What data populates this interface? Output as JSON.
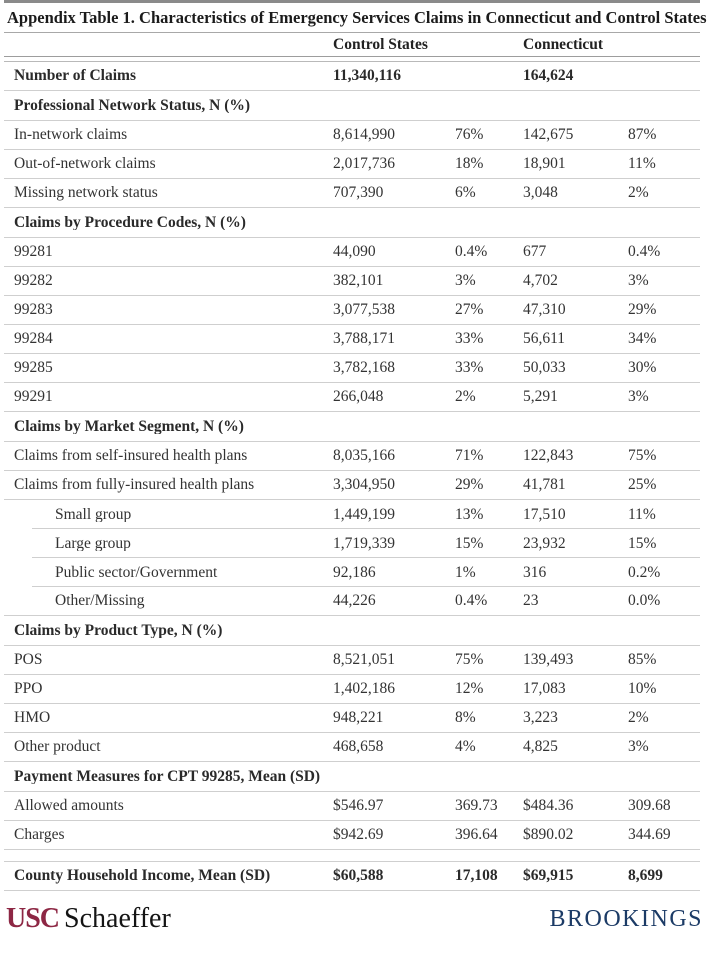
{
  "table": {
    "title": "Appendix Table 1. Characteristics of Emergency Services Claims in Connecticut and Control States",
    "col_headers": [
      "Control States",
      "Connecticut"
    ],
    "rows": [
      {
        "type": "data",
        "bold": true,
        "label": "Number of Claims",
        "c1": "11,340,116",
        "c2": "",
        "c3": "164,624",
        "c4": ""
      },
      {
        "type": "section",
        "label": "Professional Network Status, N (%)"
      },
      {
        "type": "data",
        "label": "In-network claims",
        "c1": "8,614,990",
        "c2": "76%",
        "c3": "142,675",
        "c4": "87%"
      },
      {
        "type": "data",
        "label": "Out-of-network claims",
        "c1": "2,017,736",
        "c2": "18%",
        "c3": "18,901",
        "c4": "11%"
      },
      {
        "type": "data",
        "label": "Missing network status",
        "c1": "707,390",
        "c2": "6%",
        "c3": "3,048",
        "c4": "2%"
      },
      {
        "type": "section",
        "label": "Claims by Procedure Codes, N (%)"
      },
      {
        "type": "data",
        "label": "99281",
        "c1": "44,090",
        "c2": "0.4%",
        "c3": "677",
        "c4": "0.4%"
      },
      {
        "type": "data",
        "label": "99282",
        "c1": "382,101",
        "c2": "3%",
        "c3": "4,702",
        "c4": "3%"
      },
      {
        "type": "data",
        "label": "99283",
        "c1": "3,077,538",
        "c2": "27%",
        "c3": "47,310",
        "c4": "29%"
      },
      {
        "type": "data",
        "label": "99284",
        "c1": "3,788,171",
        "c2": "33%",
        "c3": "56,611",
        "c4": "34%"
      },
      {
        "type": "data",
        "label": "99285",
        "c1": "3,782,168",
        "c2": "33%",
        "c3": "50,033",
        "c4": "30%"
      },
      {
        "type": "data",
        "label": "99291",
        "c1": "266,048",
        "c2": "2%",
        "c3": "5,291",
        "c4": "3%"
      },
      {
        "type": "section",
        "label": "Claims by Market Segment, N (%)"
      },
      {
        "type": "data",
        "label": "Claims from self-insured health plans",
        "c1": "8,035,166",
        "c2": "71%",
        "c3": "122,843",
        "c4": "75%"
      },
      {
        "type": "data",
        "label": "Claims from fully-insured health plans",
        "c1": "3,304,950",
        "c2": "29%",
        "c3": "41,781",
        "c4": "25%"
      },
      {
        "type": "data",
        "indent": true,
        "inset": true,
        "label": "Small group",
        "c1": "1,449,199",
        "c2": "13%",
        "c3": "17,510",
        "c4": "11%"
      },
      {
        "type": "data",
        "indent": true,
        "inset": true,
        "label": "Large group",
        "c1": "1,719,339",
        "c2": "15%",
        "c3": "23,932",
        "c4": "15%"
      },
      {
        "type": "data",
        "indent": true,
        "inset": true,
        "label": "Public sector/Government",
        "c1": "92,186",
        "c2": "1%",
        "c3": "316",
        "c4": "0.2%"
      },
      {
        "type": "data",
        "indent": true,
        "label": "Other/Missing",
        "c1": "44,226",
        "c2": "0.4%",
        "c3": "23",
        "c4": "0.0%"
      },
      {
        "type": "section",
        "label": "Claims by Product Type, N (%)"
      },
      {
        "type": "data",
        "label": "POS",
        "c1": "8,521,051",
        "c2": "75%",
        "c3": "139,493",
        "c4": "85%"
      },
      {
        "type": "data",
        "label": "PPO",
        "c1": "1,402,186",
        "c2": "12%",
        "c3": "17,083",
        "c4": "10%"
      },
      {
        "type": "data",
        "label": "HMO",
        "c1": "948,221",
        "c2": "8%",
        "c3": "3,223",
        "c4": "2%"
      },
      {
        "type": "data",
        "label": "Other product",
        "c1": "468,658",
        "c2": "4%",
        "c3": "4,825",
        "c4": "3%"
      },
      {
        "type": "section",
        "label": "Payment Measures for CPT 99285, Mean (SD)"
      },
      {
        "type": "data",
        "label": "Allowed amounts",
        "c1": "$546.97",
        "c2": "369.73",
        "c3": "$484.36",
        "c4": "309.68"
      },
      {
        "type": "data",
        "label": "Charges",
        "c1": "$942.69",
        "c2": "396.64",
        "c3": "$890.02",
        "c4": "344.69"
      },
      {
        "type": "spacer"
      },
      {
        "type": "data",
        "bold": true,
        "label": "County Household Income, Mean (SD)",
        "c1": "$60,588",
        "c2": "17,108",
        "c3": "$69,915",
        "c4": "8,699"
      }
    ]
  },
  "footer": {
    "usc_text": "USC",
    "schaeffer_text": "Schaeffer",
    "brookings_text": "BROOKINGS",
    "usc_color": "#8D2744",
    "brookings_color": "#1C3B66"
  }
}
